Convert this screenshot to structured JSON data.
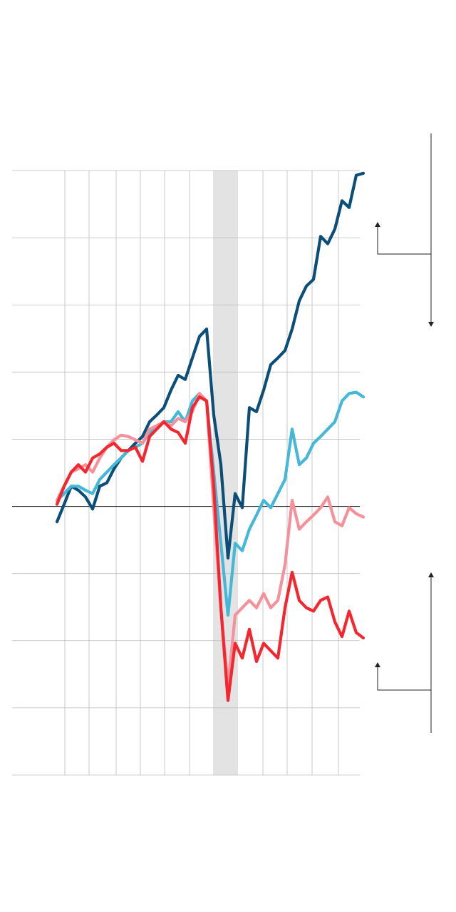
{
  "chart_data": {
    "type": "line",
    "x": [
      0,
      1,
      2,
      3,
      4,
      5,
      6,
      7,
      8,
      9,
      10,
      11,
      12,
      13,
      14,
      15,
      16,
      17,
      18,
      19,
      20,
      21,
      22,
      23,
      24,
      25,
      26,
      27,
      28,
      29,
      30,
      31,
      32,
      33,
      34,
      35,
      36,
      37,
      38,
      39,
      40,
      41,
      42,
      43
    ],
    "xlim": [
      -6.3,
      43
    ],
    "xticks": [
      1.1,
      4.5,
      8.3,
      11.7,
      15.1,
      18.6,
      28.9,
      32.3,
      35.8,
      39.5
    ],
    "ylim": [
      -4,
      5
    ],
    "yticks": [
      -4,
      -3,
      -2,
      -1,
      0,
      1,
      2,
      3,
      4,
      5
    ],
    "grid": true,
    "shaded_x": [
      21.9,
      25.4
    ],
    "series": [
      {
        "color": "#0b4f78",
        "values": [
          -0.23,
          0.03,
          0.3,
          0.24,
          0.14,
          -0.04,
          0.3,
          0.35,
          0.56,
          0.72,
          0.83,
          0.94,
          1.04,
          1.26,
          1.36,
          1.47,
          1.73,
          1.95,
          1.89,
          2.21,
          2.53,
          2.64,
          1.36,
          0.62,
          -0.77,
          0.19,
          -0.02,
          1.47,
          1.41,
          1.73,
          2.11,
          2.21,
          2.32,
          2.64,
          3.06,
          3.28,
          3.38,
          4.02,
          3.91,
          4.13,
          4.55,
          4.45,
          4.93,
          4.96
        ]
      },
      {
        "color": "#45b8d8",
        "values": [
          0.09,
          0.19,
          0.3,
          0.3,
          0.24,
          0.19,
          0.4,
          0.51,
          0.62,
          0.72,
          0.83,
          0.88,
          0.94,
          1.1,
          1.15,
          1.26,
          1.26,
          1.41,
          1.26,
          1.57,
          1.68,
          1.57,
          0.51,
          -0.55,
          -1.62,
          -0.55,
          -0.66,
          -0.34,
          -0.13,
          0.09,
          -0.02,
          0.19,
          0.4,
          1.15,
          0.62,
          0.72,
          0.94,
          1.04,
          1.15,
          1.26,
          1.57,
          1.68,
          1.7,
          1.63
        ]
      },
      {
        "color": "#f4919b",
        "values": [
          0.09,
          0.3,
          0.51,
          0.56,
          0.62,
          0.51,
          0.72,
          0.88,
          0.99,
          1.06,
          1.04,
          0.99,
          0.94,
          1.15,
          1.2,
          1.26,
          1.2,
          1.31,
          1.26,
          1.41,
          1.68,
          1.57,
          -0.02,
          -1.51,
          -2.68,
          -1.62,
          -1.51,
          -1.4,
          -1.51,
          -1.3,
          -1.51,
          -1.4,
          -0.87,
          0.09,
          -0.34,
          -0.23,
          -0.13,
          -0.02,
          0.14,
          -0.23,
          -0.29,
          -0.02,
          -0.11,
          -0.16
        ]
      },
      {
        "color": "#f4262f",
        "values": [
          0.03,
          0.3,
          0.51,
          0.62,
          0.51,
          0.72,
          0.78,
          0.88,
          0.94,
          0.83,
          0.83,
          0.88,
          0.67,
          1.04,
          1.15,
          1.26,
          1.15,
          1.1,
          0.94,
          1.47,
          1.63,
          1.57,
          0.3,
          -1.51,
          -2.89,
          -2.04,
          -2.26,
          -1.83,
          -2.31,
          -2.04,
          -2.15,
          -2.26,
          -1.51,
          -0.98,
          -1.4,
          -1.51,
          -1.56,
          -1.4,
          -1.35,
          -1.72,
          -1.94,
          -1.56,
          -1.88,
          -1.96
        ]
      }
    ]
  }
}
